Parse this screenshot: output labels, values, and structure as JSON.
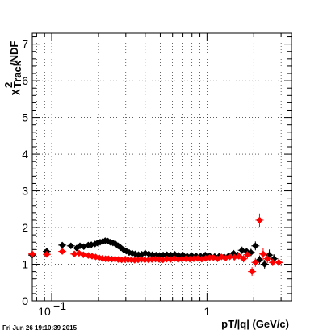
{
  "chart_data": {
    "type": "scatter",
    "title": "",
    "xlabel": "pT/|q| (GeV/c)",
    "ylabel_main": "χ",
    "ylabel_sup": "2",
    "ylabel_sub": "Track",
    "ylabel_suffix": "/NDF",
    "xscale": "log",
    "xlim": [
      0.075,
      3.5
    ],
    "ylim": [
      0,
      7.3
    ],
    "grid": true,
    "y_ticks": [
      0,
      1,
      2,
      3,
      4,
      5,
      6,
      7
    ],
    "y_tick_labels": [
      "0",
      "1",
      "2",
      "3",
      "4",
      "5",
      "6",
      "7"
    ],
    "x_tick_labels": [
      {
        "value": 0.1,
        "base": "10",
        "exp": "−1"
      },
      {
        "value": 1,
        "base": "1",
        "exp": ""
      }
    ],
    "series": [
      {
        "color": "#000000",
        "x": [
          0.075,
          0.093,
          0.117,
          0.133,
          0.145,
          0.152,
          0.161,
          0.172,
          0.18,
          0.19,
          0.197,
          0.205,
          0.213,
          0.221,
          0.23,
          0.238,
          0.248,
          0.258,
          0.268,
          0.278,
          0.29,
          0.302,
          0.315,
          0.33,
          0.345,
          0.362,
          0.38,
          0.4,
          0.422,
          0.445,
          0.47,
          0.495,
          0.522,
          0.552,
          0.585,
          0.62,
          0.658,
          0.7,
          0.745,
          0.795,
          0.85,
          0.91,
          0.975,
          1.04,
          1.12,
          1.2,
          1.29,
          1.38,
          1.48,
          1.58,
          1.68,
          1.8,
          1.92,
          2.05,
          2.18,
          2.35,
          2.52,
          2.7,
          2.9
        ],
        "y": [
          1.25,
          1.35,
          1.52,
          1.5,
          1.44,
          1.5,
          1.48,
          1.52,
          1.53,
          1.55,
          1.58,
          1.6,
          1.62,
          1.64,
          1.63,
          1.6,
          1.58,
          1.55,
          1.5,
          1.45,
          1.4,
          1.36,
          1.32,
          1.3,
          1.28,
          1.26,
          1.27,
          1.3,
          1.28,
          1.26,
          1.25,
          1.24,
          1.25,
          1.26,
          1.25,
          1.27,
          1.24,
          1.25,
          1.22,
          1.24,
          1.23,
          1.22,
          1.25,
          1.23,
          1.21,
          1.22,
          1.2,
          1.23,
          1.3,
          1.25,
          1.38,
          1.35,
          1.32,
          1.5,
          1.12,
          1.0,
          1.25,
          1.15,
          1.05
        ],
        "yerr": [
          0.05,
          0.05,
          0.04,
          0.04,
          0.04,
          0.04,
          0.04,
          0.04,
          0.04,
          0.04,
          0.04,
          0.04,
          0.04,
          0.04,
          0.04,
          0.04,
          0.04,
          0.04,
          0.04,
          0.04,
          0.04,
          0.04,
          0.04,
          0.04,
          0.04,
          0.04,
          0.04,
          0.04,
          0.04,
          0.04,
          0.04,
          0.04,
          0.04,
          0.04,
          0.04,
          0.04,
          0.04,
          0.04,
          0.04,
          0.04,
          0.04,
          0.04,
          0.04,
          0.05,
          0.05,
          0.05,
          0.05,
          0.06,
          0.08,
          0.08,
          0.1,
          0.1,
          0.1,
          0.12,
          0.12,
          0.12,
          0.15,
          0.12,
          0.1
        ]
      },
      {
        "color": "#ff0000",
        "x": [
          0.075,
          0.093,
          0.117,
          0.14,
          0.15,
          0.16,
          0.172,
          0.182,
          0.192,
          0.202,
          0.212,
          0.222,
          0.232,
          0.244,
          0.256,
          0.268,
          0.282,
          0.296,
          0.31,
          0.326,
          0.342,
          0.36,
          0.378,
          0.398,
          0.42,
          0.442,
          0.466,
          0.492,
          0.52,
          0.55,
          0.582,
          0.616,
          0.652,
          0.69,
          0.73,
          0.775,
          0.822,
          0.872,
          0.925,
          0.982,
          1.04,
          1.1,
          1.17,
          1.24,
          1.32,
          1.4,
          1.5,
          1.6,
          1.72,
          1.82,
          1.95,
          2.05,
          2.18,
          2.3,
          2.45,
          2.65,
          2.9
        ],
        "y": [
          1.28,
          1.27,
          1.35,
          1.28,
          1.3,
          1.26,
          1.24,
          1.22,
          1.2,
          1.18,
          1.16,
          1.15,
          1.15,
          1.14,
          1.14,
          1.13,
          1.12,
          1.13,
          1.12,
          1.12,
          1.11,
          1.12,
          1.13,
          1.12,
          1.12,
          1.13,
          1.14,
          1.13,
          1.12,
          1.14,
          1.13,
          1.15,
          1.13,
          1.14,
          1.15,
          1.14,
          1.15,
          1.16,
          1.14,
          1.16,
          1.18,
          1.18,
          1.15,
          1.2,
          1.17,
          1.2,
          1.19,
          1.22,
          1.15,
          1.26,
          0.8,
          1.05,
          2.2,
          1.28,
          1.15,
          1.05,
          1.05
        ],
        "yerr": [
          0.04,
          0.04,
          0.04,
          0.03,
          0.03,
          0.03,
          0.03,
          0.03,
          0.03,
          0.03,
          0.03,
          0.03,
          0.03,
          0.03,
          0.03,
          0.03,
          0.03,
          0.03,
          0.03,
          0.03,
          0.03,
          0.03,
          0.03,
          0.03,
          0.03,
          0.03,
          0.03,
          0.03,
          0.03,
          0.03,
          0.03,
          0.03,
          0.03,
          0.03,
          0.03,
          0.03,
          0.03,
          0.03,
          0.03,
          0.04,
          0.04,
          0.05,
          0.05,
          0.05,
          0.06,
          0.06,
          0.07,
          0.08,
          0.1,
          0.1,
          0.12,
          0.12,
          0.18,
          0.15,
          0.12,
          0.1,
          0.1
        ]
      }
    ]
  },
  "timestamp": "Fri Jun 26 19:10:39 2015"
}
